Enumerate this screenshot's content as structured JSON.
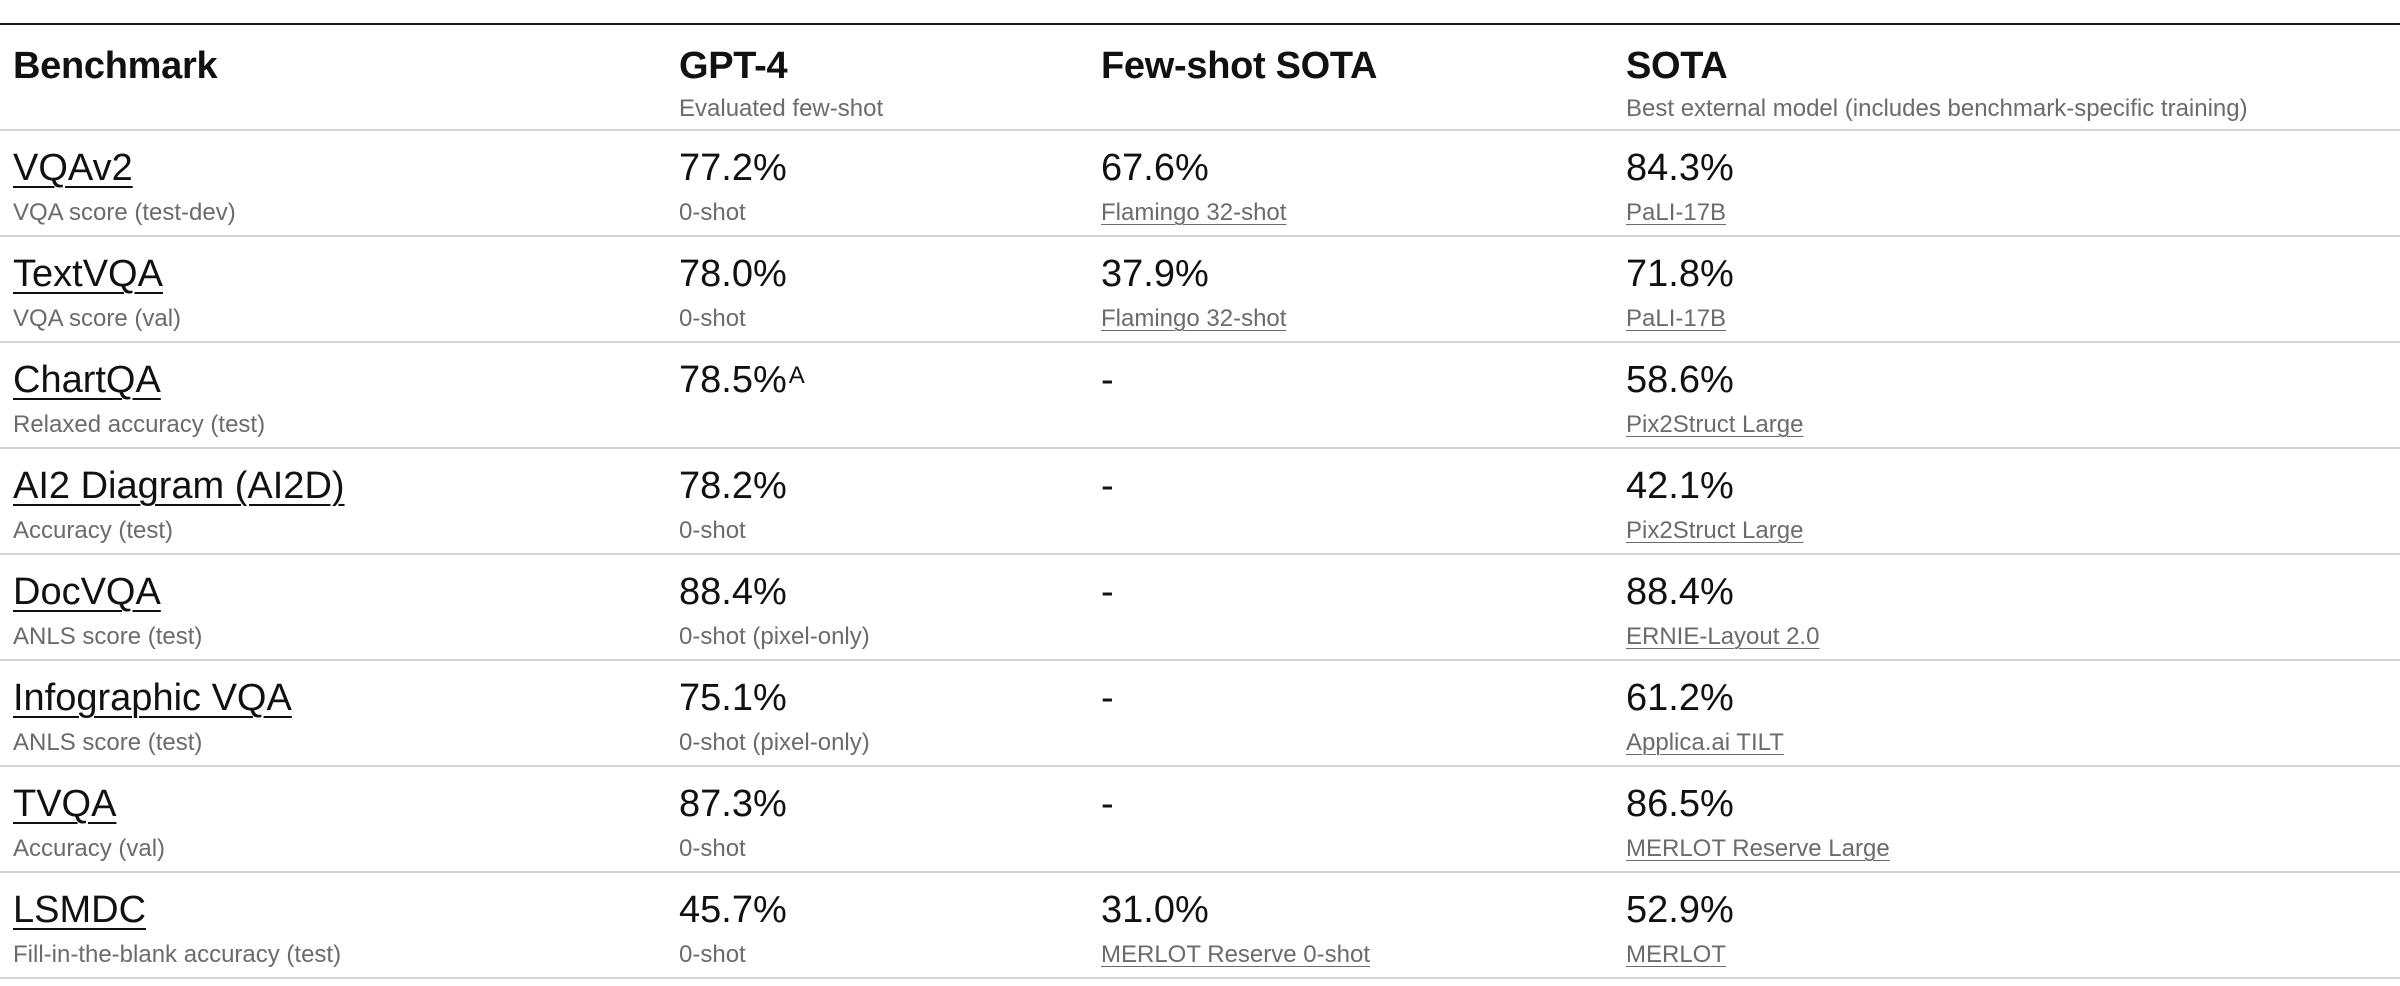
{
  "header": {
    "benchmark": {
      "title": "Benchmark",
      "subtitle": ""
    },
    "gpt4": {
      "title": "GPT-4",
      "subtitle": "Evaluated few-shot"
    },
    "fewshot": {
      "title": "Few-shot SOTA",
      "subtitle": ""
    },
    "sota": {
      "title": "SOTA",
      "subtitle": "Best external model (includes benchmark-specific training)"
    }
  },
  "rows": [
    {
      "name": "VQAv2",
      "metric": "VQA score (test-dev)",
      "gpt4": {
        "value": "77.2%",
        "sup": "",
        "note": "0-shot"
      },
      "fewshot": {
        "value": "67.6%",
        "model": "Flamingo 32-shot"
      },
      "sota": {
        "value": "84.3%",
        "model": "PaLI-17B"
      }
    },
    {
      "name": "TextVQA",
      "metric": "VQA score (val)",
      "gpt4": {
        "value": "78.0%",
        "sup": "",
        "note": "0-shot"
      },
      "fewshot": {
        "value": "37.9%",
        "model": "Flamingo 32-shot"
      },
      "sota": {
        "value": "71.8%",
        "model": "PaLI-17B"
      }
    },
    {
      "name": "ChartQA",
      "metric": "Relaxed accuracy (test)",
      "gpt4": {
        "value": "78.5%",
        "sup": "A",
        "note": ""
      },
      "fewshot": {
        "value": "-",
        "model": ""
      },
      "sota": {
        "value": "58.6%",
        "model": "Pix2Struct Large"
      }
    },
    {
      "name": "AI2 Diagram (AI2D)",
      "metric": "Accuracy (test)",
      "gpt4": {
        "value": "78.2%",
        "sup": "",
        "note": "0-shot"
      },
      "fewshot": {
        "value": "-",
        "model": ""
      },
      "sota": {
        "value": "42.1%",
        "model": "Pix2Struct Large"
      }
    },
    {
      "name": "DocVQA",
      "metric": "ANLS score (test)",
      "gpt4": {
        "value": "88.4%",
        "sup": "",
        "note": "0-shot (pixel-only)"
      },
      "fewshot": {
        "value": "-",
        "model": ""
      },
      "sota": {
        "value": "88.4%",
        "model": "ERNIE-Layout 2.0"
      }
    },
    {
      "name": "Infographic VQA",
      "metric": "ANLS score (test)",
      "gpt4": {
        "value": "75.1%",
        "sup": "",
        "note": "0-shot (pixel-only)"
      },
      "fewshot": {
        "value": "-",
        "model": ""
      },
      "sota": {
        "value": "61.2%",
        "model": "Applica.ai TILT"
      }
    },
    {
      "name": "TVQA",
      "metric": "Accuracy (val)",
      "gpt4": {
        "value": "87.3%",
        "sup": "",
        "note": "0-shot"
      },
      "fewshot": {
        "value": "-",
        "model": ""
      },
      "sota": {
        "value": "86.5%",
        "model": "MERLOT Reserve Large"
      }
    },
    {
      "name": "LSMDC",
      "metric": "Fill-in-the-blank accuracy (test)",
      "gpt4": {
        "value": "45.7%",
        "sup": "",
        "note": "0-shot"
      },
      "fewshot": {
        "value": "31.0%",
        "model": "MERLOT Reserve 0-shot"
      },
      "sota": {
        "value": "52.9%",
        "model": "MERLOT"
      }
    }
  ]
}
